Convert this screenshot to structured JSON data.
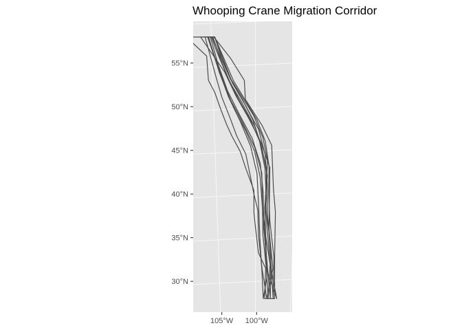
{
  "map": {
    "title": "Whooping Crane Migration Corridor",
    "panel_color": "#e5e5e5",
    "grid_color": "#ffffff",
    "line_color": "#4a4a4a",
    "lat_ticks": [
      {
        "value": 55,
        "label": "55°N"
      },
      {
        "value": 50,
        "label": "50°N"
      },
      {
        "value": 45,
        "label": "45°N"
      },
      {
        "value": 40,
        "label": "40°N"
      },
      {
        "value": 35,
        "label": "35°N"
      },
      {
        "value": 30,
        "label": "30°N"
      }
    ],
    "lon_ticks": [
      {
        "value": -105,
        "label": "105°W"
      },
      {
        "value": -100,
        "label": "100°W"
      }
    ],
    "lat_range": [
      27.3,
      59.5
    ],
    "lon_range": [
      -108.5,
      -96.9
    ]
  },
  "chart_data": {
    "type": "map",
    "title": "Whooping Crane Migration Corridor",
    "xlabel": "",
    "ylabel": "",
    "corridor_polygons": [
      [
        [
          -107.8,
          58.2
        ],
        [
          -104.7,
          58.2
        ],
        [
          -102.9,
          55.8
        ],
        [
          -101.3,
          53.2
        ],
        [
          -101.2,
          51.0
        ],
        [
          -99.2,
          48.0
        ],
        [
          -98.0,
          45.7
        ],
        [
          -97.7,
          40.6
        ],
        [
          -97.4,
          38.0
        ],
        [
          -97.4,
          33.0
        ],
        [
          -97.3,
          28.0
        ],
        [
          -98.7,
          28.0
        ],
        [
          -98.6,
          31.5
        ],
        [
          -99.6,
          33.3
        ],
        [
          -100.0,
          36.2
        ],
        [
          -100.2,
          37.9
        ],
        [
          -100.2,
          40.5
        ],
        [
          -101.2,
          43.0
        ],
        [
          -101.9,
          45.0
        ],
        [
          -102.9,
          46.8
        ],
        [
          -103.5,
          48.1
        ],
        [
          -104.1,
          49.7
        ],
        [
          -104.8,
          51.8
        ],
        [
          -105.5,
          53.2
        ],
        [
          -105.6,
          56.0
        ]
      ],
      [
        [
          -105.7,
          58.2
        ],
        [
          -104.6,
          58.2
        ],
        [
          -103.9,
          55.8
        ],
        [
          -102.9,
          53.4
        ],
        [
          -101.6,
          51.3
        ],
        [
          -100.2,
          49.1
        ],
        [
          -99.1,
          46.6
        ],
        [
          -98.5,
          44.0
        ],
        [
          -98.6,
          41.6
        ],
        [
          -98.7,
          38.5
        ],
        [
          -98.2,
          35.7
        ],
        [
          -97.6,
          31.5
        ],
        [
          -98.4,
          28.0
        ],
        [
          -99.1,
          31.5
        ],
        [
          -99.6,
          35.3
        ],
        [
          -99.7,
          38.2
        ],
        [
          -100.2,
          40.1
        ],
        [
          -100.7,
          42.4
        ],
        [
          -101.2,
          44.7
        ],
        [
          -102.3,
          46.8
        ],
        [
          -103.0,
          48.7
        ],
        [
          -104.0,
          51.3
        ],
        [
          -104.6,
          53.6
        ]
      ],
      [
        [
          -105.4,
          58.2
        ],
        [
          -104.6,
          58.2
        ],
        [
          -103.7,
          55.9
        ],
        [
          -102.6,
          53.2
        ],
        [
          -101.2,
          50.9
        ],
        [
          -99.8,
          48.6
        ],
        [
          -98.8,
          46.2
        ],
        [
          -98.3,
          43.3
        ],
        [
          -98.3,
          40.1
        ],
        [
          -98.1,
          36.9
        ],
        [
          -97.5,
          32.8
        ],
        [
          -97.5,
          28.0
        ],
        [
          -97.8,
          31.0
        ],
        [
          -98.6,
          35.0
        ],
        [
          -99.1,
          38.5
        ],
        [
          -99.4,
          42.0
        ],
        [
          -100.1,
          45.0
        ],
        [
          -101.2,
          47.4
        ],
        [
          -102.6,
          50.0
        ],
        [
          -103.7,
          52.9
        ]
      ],
      [
        [
          -105.3,
          58.2
        ],
        [
          -104.9,
          58.2
        ],
        [
          -104.0,
          55.9
        ],
        [
          -102.9,
          53.3
        ],
        [
          -101.5,
          50.9
        ],
        [
          -100.3,
          48.6
        ],
        [
          -99.4,
          46.0
        ],
        [
          -98.6,
          43.0
        ],
        [
          -98.7,
          39.9
        ],
        [
          -98.5,
          36.5
        ],
        [
          -98.0,
          32.0
        ],
        [
          -98.2,
          28.0
        ],
        [
          -98.5,
          31.4
        ],
        [
          -99.0,
          35.3
        ],
        [
          -99.1,
          39.0
        ],
        [
          -99.2,
          42.5
        ],
        [
          -100.1,
          45.5
        ],
        [
          -101.7,
          48.6
        ],
        [
          -103.1,
          51.2
        ],
        [
          -104.2,
          54.1
        ]
      ],
      [
        [
          -106.2,
          58.2
        ],
        [
          -105.0,
          58.2
        ],
        [
          -104.3,
          56.2
        ],
        [
          -103.3,
          53.7
        ],
        [
          -102.0,
          51.0
        ],
        [
          -100.6,
          48.6
        ],
        [
          -99.5,
          46.2
        ],
        [
          -98.8,
          43.0
        ],
        [
          -98.6,
          39.6
        ],
        [
          -98.8,
          36.0
        ],
        [
          -98.5,
          31.5
        ],
        [
          -97.0,
          28.0
        ],
        [
          -97.8,
          31.2
        ],
        [
          -98.2,
          35.4
        ],
        [
          -98.2,
          39.0
        ],
        [
          -98.2,
          43.1
        ],
        [
          -99.3,
          46.0
        ],
        [
          -100.8,
          48.8
        ],
        [
          -102.3,
          51.4
        ],
        [
          -103.6,
          54.2
        ]
      ],
      [
        [
          -105.1,
          58.2
        ],
        [
          -104.6,
          58.2
        ],
        [
          -103.7,
          55.6
        ],
        [
          -102.7,
          52.9
        ],
        [
          -101.3,
          50.5
        ],
        [
          -99.6,
          47.5
        ],
        [
          -98.8,
          44.6
        ],
        [
          -98.5,
          41.3
        ],
        [
          -98.4,
          37.5
        ],
        [
          -97.9,
          33.6
        ],
        [
          -97.9,
          28.0
        ],
        [
          -98.4,
          32.0
        ],
        [
          -98.9,
          36.1
        ],
        [
          -99.0,
          40.2
        ],
        [
          -99.4,
          43.6
        ],
        [
          -100.4,
          46.5
        ],
        [
          -101.9,
          49.2
        ],
        [
          -103.3,
          52.0
        ],
        [
          -104.3,
          55.0
        ]
      ],
      [
        [
          -105.4,
          58.2
        ],
        [
          -104.8,
          58.2
        ],
        [
          -104.0,
          55.6
        ],
        [
          -103.0,
          53.0
        ],
        [
          -101.6,
          50.6
        ],
        [
          -100.1,
          47.9
        ],
        [
          -99.2,
          45.4
        ],
        [
          -98.5,
          42.2
        ],
        [
          -98.8,
          38.4
        ],
        [
          -98.6,
          34.5
        ],
        [
          -98.4,
          30.5
        ],
        [
          -98.9,
          28.0
        ],
        [
          -99.1,
          31.0
        ],
        [
          -99.4,
          34.8
        ],
        [
          -99.6,
          38.8
        ],
        [
          -99.8,
          42.4
        ],
        [
          -100.6,
          45.6
        ],
        [
          -101.8,
          48.4
        ],
        [
          -103.2,
          51.3
        ],
        [
          -104.2,
          54.2
        ]
      ]
    ]
  }
}
